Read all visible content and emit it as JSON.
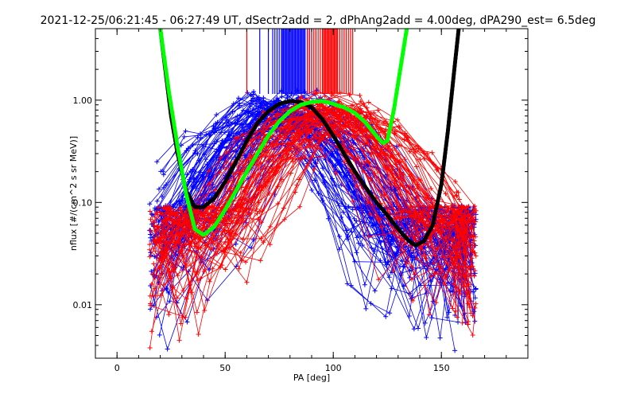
{
  "chart_data": {
    "type": "line",
    "title": "2021-12-25/06:21:45 - 06:27:49 UT, dSectr2add = 2, dPhAng2add = 4.00deg, dPA290_est=   6.5deg",
    "xlabel": "PA [deg]",
    "ylabel": "nflux [#/(cm^2 s sr MeV)]",
    "xlim": [
      -10,
      190
    ],
    "ylim": [
      0.003,
      5
    ],
    "yscale": "log",
    "grid": false,
    "x_ticks": [
      0,
      50,
      100,
      150
    ],
    "x_tick_labels": [
      "0",
      "50",
      "100",
      "150"
    ],
    "y_ticks": [
      0.01,
      0.1,
      1.0
    ],
    "y_tick_labels": [
      "0.01",
      "0.10",
      "1.00"
    ],
    "colors": {
      "blue_traces": "#0000ff",
      "red_traces": "#ff0000",
      "black_fit": "#000000",
      "green_fit": "#00ff00"
    },
    "series": [
      {
        "color": "black",
        "style": "dotted-thick",
        "x": [
          20,
          25,
          28,
          32,
          36,
          40,
          45,
          50,
          55,
          60,
          65,
          70,
          75,
          80,
          85,
          90,
          95,
          100,
          105,
          110,
          115,
          120,
          125,
          130,
          135,
          138,
          142,
          146,
          150,
          153,
          156,
          158
        ],
        "y": [
          5,
          0.7,
          0.3,
          0.13,
          0.09,
          0.09,
          0.11,
          0.16,
          0.25,
          0.4,
          0.6,
          0.78,
          0.92,
          0.98,
          0.96,
          0.85,
          0.65,
          0.45,
          0.3,
          0.2,
          0.14,
          0.1,
          0.075,
          0.055,
          0.042,
          0.038,
          0.042,
          0.06,
          0.15,
          0.5,
          2,
          5
        ]
      },
      {
        "color": "green",
        "style": "dotted-thick",
        "x": [
          20,
          24,
          28,
          32,
          36,
          40,
          45,
          50,
          55,
          60,
          65,
          70,
          75,
          80,
          85,
          90,
          95,
          100,
          105,
          110,
          115,
          118,
          121,
          123,
          125,
          128,
          131,
          134
        ],
        "y": [
          5,
          1.2,
          0.35,
          0.12,
          0.055,
          0.048,
          0.058,
          0.085,
          0.13,
          0.2,
          0.3,
          0.45,
          0.62,
          0.78,
          0.9,
          0.96,
          0.98,
          0.92,
          0.85,
          0.75,
          0.6,
          0.5,
          0.42,
          0.38,
          0.4,
          0.8,
          2,
          5
        ]
      }
    ],
    "trace_groups": [
      {
        "name": "",
        "color": "blue",
        "count": 90,
        "pa_peak_range": [
          62,
          96
        ]
      },
      {
        "name": "",
        "color": "red",
        "count": 70,
        "pa_peak_range": [
          82,
          112
        ]
      }
    ],
    "vertical_markers": {
      "blue_x": [
        66,
        70,
        72,
        73,
        74,
        75,
        76,
        76.5,
        77,
        77.5,
        78,
        78.5,
        79,
        79.5,
        80,
        80.5,
        81,
        81.5,
        82,
        82.5,
        83,
        83.5,
        84,
        84.5,
        85,
        85.5,
        86,
        86.5,
        87,
        88,
        89,
        90
      ],
      "red_x": [
        60,
        88,
        89,
        90,
        91,
        92,
        93,
        94,
        95,
        95.5,
        96,
        96.5,
        97,
        97.5,
        98,
        98.5,
        99,
        99.5,
        100,
        100.5,
        101,
        101.5,
        102,
        103,
        104,
        105,
        106,
        107,
        108,
        109
      ],
      "y_top": 5,
      "y_bottom": 1.15
    }
  }
}
